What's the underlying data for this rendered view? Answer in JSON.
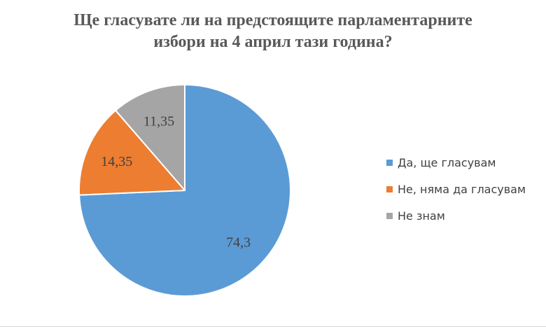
{
  "chart_data": {
    "type": "pie",
    "title_lines": [
      "Ще гласувате ли на предстоящите парламентарните",
      "избори на 4 април тази година?"
    ],
    "categories": [
      "Да, ще гласувам",
      "Не, няма да гласувам",
      "Не знам"
    ],
    "values": [
      74.3,
      14.35,
      11.35
    ],
    "value_labels": [
      "74,3",
      "14,35",
      "11,35"
    ],
    "colors": [
      "#5b9bd5",
      "#ed7d31",
      "#a5a5a5"
    ],
    "start_angle": "12 o'clock, clockwise",
    "legend_position": "right"
  }
}
